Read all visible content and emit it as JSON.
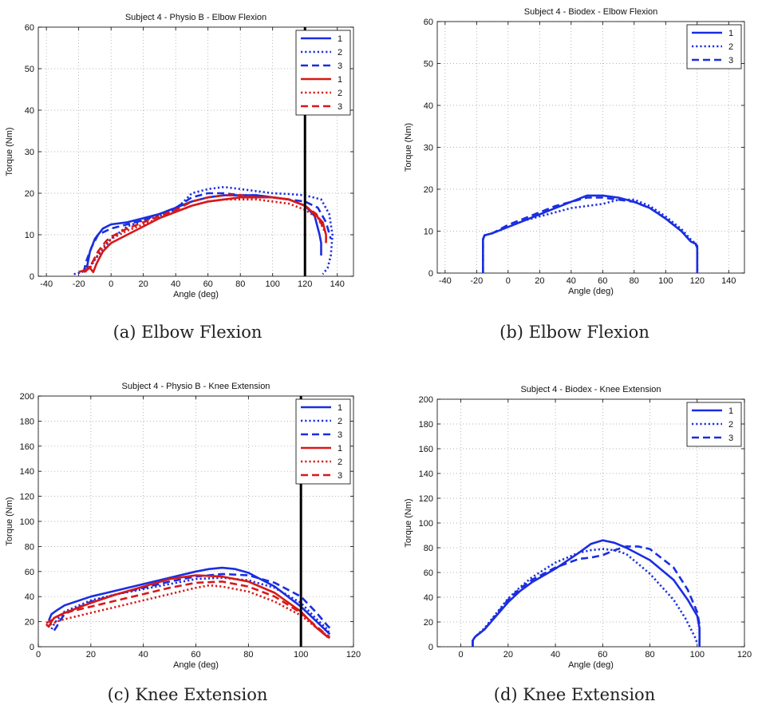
{
  "captions": [
    "(a)  Elbow Flexion",
    "(b)  Elbow Flexion",
    "(c)  Knee Extension",
    "(d)  Knee Extension"
  ],
  "colors": {
    "physio": "#d81818",
    "biodex": "#1a2ee0",
    "marker": "#000000",
    "grid": "#9a9a9a"
  },
  "chart_data": [
    {
      "type": "line",
      "title": "Subject 4 - Physio B - Elbow Flexion",
      "xlabel": "Angle (deg)",
      "ylabel": "Torque (Nm)",
      "xlim": [
        -45,
        150
      ],
      "ylim": [
        0,
        60
      ],
      "xticks": [
        -40,
        -20,
        0,
        20,
        40,
        60,
        80,
        100,
        120,
        140
      ],
      "yticks": [
        0,
        10,
        20,
        30,
        40,
        50,
        60
      ],
      "grid": true,
      "legend_position": "top-right",
      "vline": 120,
      "series": [
        {
          "name": "1",
          "color": "blue",
          "style": "solid",
          "x": [
            -15,
            -13,
            -10,
            -5,
            0,
            10,
            20,
            30,
            40,
            50,
            60,
            70,
            80,
            90,
            100,
            110,
            120,
            126,
            129,
            130,
            130
          ],
          "y": [
            2,
            6,
            9,
            11.5,
            12.5,
            13,
            14,
            15,
            16.5,
            18,
            19,
            19.5,
            19.5,
            19.5,
            19,
            18.5,
            17,
            14.5,
            10,
            8,
            5
          ]
        },
        {
          "name": "2",
          "color": "blue",
          "style": "dotted",
          "x": [
            -23,
            -18,
            -14,
            -10,
            0,
            10,
            20,
            30,
            40,
            50,
            60,
            70,
            80,
            90,
            100,
            110,
            120,
            130,
            135,
            137,
            136,
            134,
            131
          ],
          "y": [
            0.5,
            1,
            2,
            4,
            9,
            12,
            13.5,
            14.5,
            16,
            20,
            21,
            21.5,
            21,
            20.5,
            20,
            19.8,
            19.5,
            18.5,
            15,
            10,
            5,
            2,
            0.5
          ]
        },
        {
          "name": "3",
          "color": "blue",
          "style": "dashed",
          "x": [
            -17,
            -15,
            -12,
            -8,
            0,
            10,
            20,
            30,
            40,
            50,
            60,
            70,
            80,
            90,
            100,
            110,
            120,
            128,
            133,
            136
          ],
          "y": [
            1,
            4,
            7,
            10,
            11.5,
            12.5,
            13.5,
            15,
            16.5,
            19,
            20,
            20,
            19.5,
            19.5,
            19,
            18.5,
            18,
            16.5,
            13,
            9
          ]
        },
        {
          "name": "1",
          "color": "red",
          "style": "solid",
          "x": [
            -20,
            -16,
            -13,
            -12,
            -11,
            -9,
            -5,
            0,
            10,
            20,
            30,
            40,
            50,
            60,
            70,
            80,
            90,
            100,
            110,
            120,
            126,
            131,
            133,
            133
          ],
          "y": [
            1,
            1.5,
            2,
            1.5,
            1,
            3,
            6,
            8,
            10,
            12,
            14,
            15.5,
            17,
            18,
            18.5,
            19,
            19,
            19,
            18.5,
            17,
            15,
            13,
            10,
            8
          ]
        },
        {
          "name": "2",
          "color": "red",
          "style": "dotted",
          "x": [
            -17,
            -13,
            -10,
            -5,
            0,
            10,
            20,
            30,
            40,
            50,
            60,
            70,
            80,
            90,
            100,
            110,
            120,
            128,
            132
          ],
          "y": [
            1,
            2,
            4,
            7,
            9,
            11,
            12.5,
            14,
            15.5,
            17,
            18,
            18.5,
            18.5,
            18.5,
            18,
            17.5,
            16,
            14,
            11
          ]
        },
        {
          "name": "3",
          "color": "red",
          "style": "dashed",
          "x": [
            -16,
            -12,
            -8,
            -3,
            0,
            10,
            20,
            30,
            40,
            50,
            60,
            70,
            80,
            90,
            100,
            110,
            120,
            127,
            131
          ],
          "y": [
            1,
            3,
            6,
            8.5,
            9.5,
            11.5,
            13,
            14.5,
            16,
            18,
            19,
            19.5,
            19.5,
            19,
            19,
            18.5,
            17,
            15,
            12
          ]
        }
      ]
    },
    {
      "type": "line",
      "title": "Subject 4 - Biodex - Elbow Flexion",
      "xlabel": "Angle (deg)",
      "ylabel": "Torque (Nm)",
      "xlim": [
        -45,
        150
      ],
      "ylim": [
        0,
        60
      ],
      "xticks": [
        -40,
        -20,
        0,
        20,
        40,
        60,
        80,
        100,
        120,
        140
      ],
      "yticks": [
        0,
        10,
        20,
        30,
        40,
        50,
        60
      ],
      "grid": true,
      "legend_position": "top-right",
      "series": [
        {
          "name": "1",
          "color": "blue",
          "style": "solid",
          "x": [
            -16,
            -16,
            -15,
            -10,
            0,
            10,
            20,
            30,
            40,
            50,
            60,
            70,
            80,
            90,
            100,
            110,
            116,
            119,
            120,
            120
          ],
          "y": [
            0,
            8,
            9,
            9.5,
            11,
            12.5,
            14,
            15.5,
            17,
            18.5,
            18.5,
            18,
            17,
            15.5,
            13,
            10,
            7.5,
            7,
            6,
            0
          ]
        },
        {
          "name": "2",
          "color": "blue",
          "style": "dotted",
          "x": [
            -16,
            -16,
            -15,
            -10,
            0,
            10,
            20,
            30,
            40,
            50,
            60,
            70,
            80,
            90,
            100,
            110,
            116,
            119,
            120,
            120
          ],
          "y": [
            0,
            8,
            9,
            9.5,
            11,
            12.5,
            13.5,
            14.5,
            15.5,
            16,
            16.5,
            17.5,
            17.5,
            16,
            13.5,
            10.5,
            8,
            7,
            6,
            0
          ]
        },
        {
          "name": "3",
          "color": "blue",
          "style": "dashed",
          "x": [
            -16,
            -16,
            -15,
            -10,
            0,
            10,
            20,
            30,
            40,
            50,
            60,
            70,
            80,
            90,
            100,
            110,
            116,
            119,
            120,
            120
          ],
          "y": [
            0,
            8,
            9,
            9.5,
            11.5,
            13,
            14.5,
            16,
            17,
            18,
            18,
            17.5,
            17,
            15.5,
            13,
            10,
            7.5,
            7,
            6.5,
            0
          ]
        }
      ]
    },
    {
      "type": "line",
      "title": "Subject 4 - Physio B - Knee Extension",
      "xlabel": "Angle (deg)",
      "ylabel": "Torque (Nm)",
      "xlim": [
        0,
        120
      ],
      "ylim": [
        0,
        200
      ],
      "xticks": [
        0,
        20,
        40,
        60,
        80,
        100,
        120
      ],
      "yticks": [
        0,
        20,
        40,
        60,
        80,
        100,
        120,
        140,
        160,
        180,
        200
      ],
      "grid": true,
      "legend_position": "top-right",
      "vline": 100,
      "series": [
        {
          "name": "1",
          "color": "blue",
          "style": "solid",
          "x": [
            4,
            5,
            7,
            10,
            20,
            30,
            40,
            50,
            60,
            65,
            70,
            75,
            80,
            90,
            100,
            106,
            110,
            111
          ],
          "y": [
            21,
            26,
            29,
            33,
            40,
            45,
            50,
            55,
            60,
            62,
            63,
            62,
            59,
            48,
            32,
            20,
            12,
            10
          ]
        },
        {
          "name": "2",
          "color": "blue",
          "style": "dotted",
          "x": [
            5,
            6,
            7,
            10,
            20,
            30,
            40,
            50,
            60,
            70,
            80,
            90,
            100,
            106,
            110,
            111
          ],
          "y": [
            14,
            18,
            21,
            28,
            37,
            42,
            46,
            50,
            54,
            55,
            53,
            47,
            35,
            22,
            14,
            10
          ]
        },
        {
          "name": "3",
          "color": "blue",
          "style": "dashed",
          "x": [
            6,
            7,
            8,
            10,
            20,
            30,
            40,
            50,
            60,
            70,
            80,
            90,
            100,
            106,
            110,
            112
          ],
          "y": [
            13,
            16,
            20,
            26,
            36,
            42,
            47,
            52,
            56,
            58,
            57,
            51,
            40,
            27,
            17,
            13
          ]
        },
        {
          "name": "1",
          "color": "red",
          "style": "solid",
          "x": [
            3,
            4,
            5,
            6,
            10,
            20,
            30,
            40,
            50,
            60,
            70,
            80,
            90,
            100,
            106,
            110,
            111
          ],
          "y": [
            18,
            16,
            20,
            23,
            27,
            35,
            42,
            48,
            54,
            57,
            56,
            52,
            43,
            28,
            15,
            8,
            7
          ]
        },
        {
          "name": "2",
          "color": "red",
          "style": "dotted",
          "x": [
            3,
            5,
            7,
            10,
            20,
            30,
            40,
            50,
            60,
            65,
            70,
            80,
            90,
            100,
            106,
            110,
            111
          ],
          "y": [
            17,
            18,
            20,
            22,
            27,
            32,
            37,
            42,
            47,
            49,
            48,
            44,
            36,
            25,
            15,
            9,
            8
          ]
        },
        {
          "name": "3",
          "color": "red",
          "style": "dashed",
          "x": [
            3,
            5,
            7,
            10,
            20,
            30,
            40,
            50,
            60,
            70,
            80,
            90,
            100,
            106,
            110,
            111
          ],
          "y": [
            19,
            21,
            24,
            27,
            32,
            37,
            42,
            47,
            51,
            52,
            48,
            40,
            27,
            16,
            9,
            8
          ]
        }
      ]
    },
    {
      "type": "line",
      "title": "Subject 4 - Biodex - Knee Extension",
      "xlabel": "Angle (deg)",
      "ylabel": "Torque (Nm)",
      "xlim": [
        -10,
        120
      ],
      "ylim": [
        0,
        200
      ],
      "xticks": [
        0,
        20,
        40,
        60,
        80,
        100,
        120
      ],
      "yticks": [
        0,
        20,
        40,
        60,
        80,
        100,
        120,
        140,
        160,
        180,
        200
      ],
      "grid": true,
      "legend_position": "top-right",
      "series": [
        {
          "name": "1",
          "color": "blue",
          "style": "solid",
          "x": [
            5,
            5,
            6,
            10,
            15,
            20,
            25,
            30,
            40,
            50,
            55,
            60,
            65,
            70,
            80,
            90,
            96,
            100,
            101,
            101
          ],
          "y": [
            0,
            5,
            8,
            14,
            25,
            36,
            45,
            52,
            63,
            76,
            83,
            86,
            84,
            80,
            70,
            54,
            38,
            25,
            15,
            0
          ]
        },
        {
          "name": "2",
          "color": "blue",
          "style": "dotted",
          "x": [
            5,
            5,
            6,
            10,
            15,
            20,
            25,
            30,
            40,
            50,
            55,
            60,
            65,
            70,
            75,
            80,
            90,
            95,
            99,
            100
          ],
          "y": [
            0,
            5,
            8,
            15,
            27,
            39,
            48,
            56,
            68,
            76,
            78,
            79,
            78,
            75,
            67,
            59,
            38,
            23,
            8,
            3
          ]
        },
        {
          "name": "3",
          "color": "blue",
          "style": "dashed",
          "x": [
            5,
            5,
            6,
            10,
            15,
            20,
            25,
            30,
            40,
            50,
            55,
            60,
            65,
            70,
            75,
            80,
            90,
            96,
            100,
            101,
            101
          ],
          "y": [
            0,
            5,
            8,
            14,
            26,
            38,
            47,
            54,
            64,
            71,
            72,
            74,
            78,
            81,
            81,
            79,
            64,
            46,
            28,
            18,
            0
          ]
        }
      ]
    }
  ]
}
